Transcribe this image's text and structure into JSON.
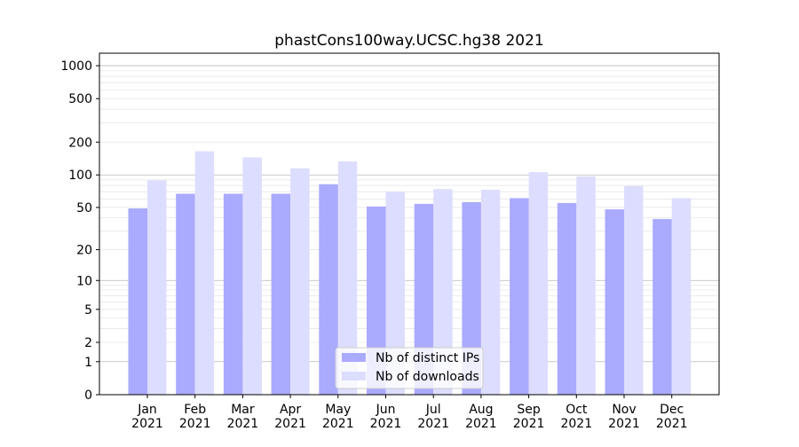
{
  "chart_data": {
    "type": "bar",
    "title": "phastCons100way.UCSC.hg38 2021",
    "xlabel": "",
    "ylabel": "",
    "yscale": "symlog",
    "ylim": [
      0,
      1300
    ],
    "yticks": [
      0,
      1,
      2,
      5,
      10,
      20,
      50,
      100,
      200,
      500,
      1000
    ],
    "ytick_labels": [
      "0",
      "1",
      "2",
      "5",
      "10",
      "20",
      "50",
      "100",
      "200",
      "500",
      "1000"
    ],
    "categories": [
      "Jan\n2021",
      "Feb\n2021",
      "Mar\n2021",
      "Apr\n2021",
      "May\n2021",
      "Jun\n2021",
      "Jul\n2021",
      "Aug\n2021",
      "Sep\n2021",
      "Oct\n2021",
      "Nov\n2021",
      "Dec\n2021"
    ],
    "category_lines": [
      [
        "Jan",
        "2021"
      ],
      [
        "Feb",
        "2021"
      ],
      [
        "Mar",
        "2021"
      ],
      [
        "Apr",
        "2021"
      ],
      [
        "May",
        "2021"
      ],
      [
        "Jun",
        "2021"
      ],
      [
        "Jul",
        "2021"
      ],
      [
        "Aug",
        "2021"
      ],
      [
        "Sep",
        "2021"
      ],
      [
        "Oct",
        "2021"
      ],
      [
        "Nov",
        "2021"
      ],
      [
        "Dec",
        "2021"
      ]
    ],
    "series": [
      {
        "name": "Nb of distinct IPs",
        "color": "#aaaaff",
        "values": [
          49,
          67,
          67,
          67,
          82,
          51,
          54,
          56,
          61,
          55,
          48,
          39
        ]
      },
      {
        "name": "Nb of downloads",
        "color": "#ddddff",
        "values": [
          89,
          165,
          145,
          115,
          133,
          70,
          74,
          73,
          106,
          97,
          79,
          61
        ]
      }
    ],
    "grid": true,
    "legend_position": "bottom-center"
  }
}
